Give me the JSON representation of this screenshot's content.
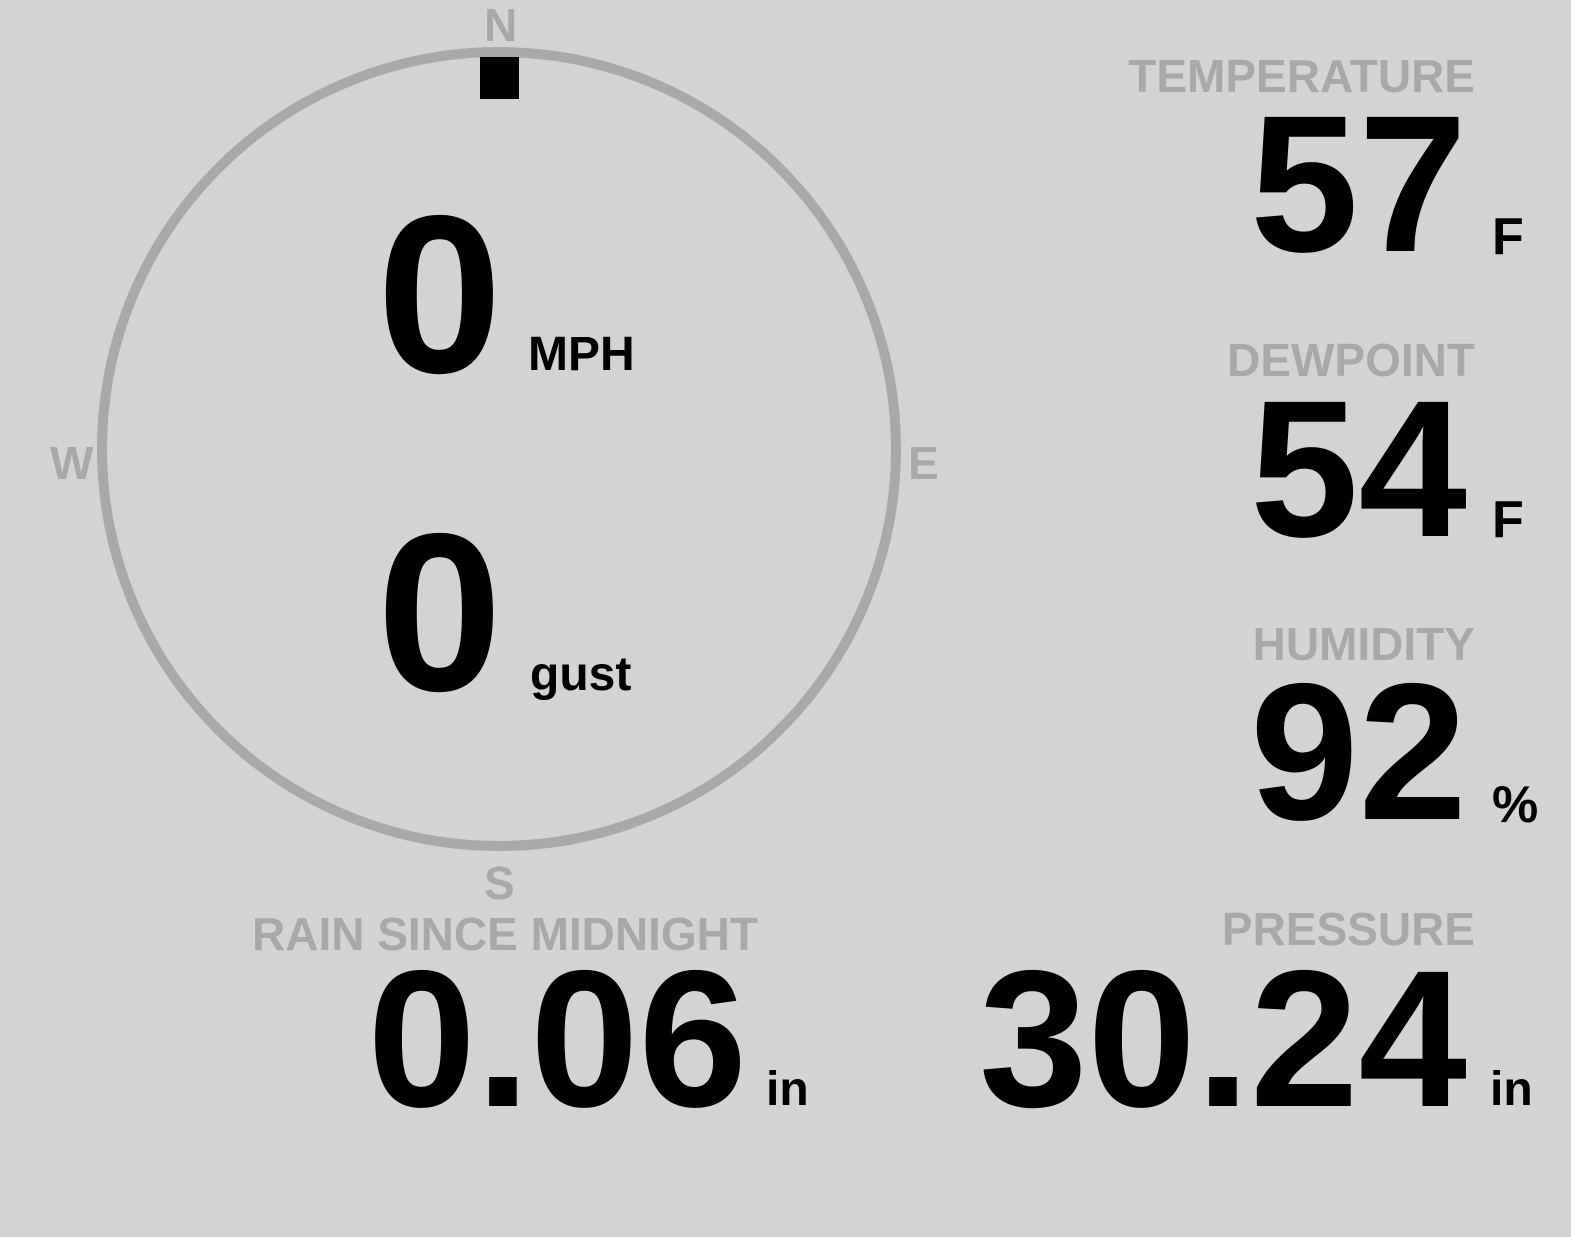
{
  "colors": {
    "background": "#d3d3d3",
    "label": "#a9a9a9",
    "value": "#000000"
  },
  "wind": {
    "compass": {
      "n": "N",
      "e": "E",
      "s": "S",
      "w": "W"
    },
    "direction_deg": 0,
    "speed": "0",
    "speed_unit": "MPH",
    "gust": "0",
    "gust_unit": "gust"
  },
  "temperature": {
    "label": "TEMPERATURE",
    "value": "57",
    "unit": "F"
  },
  "dewpoint": {
    "label": "DEWPOINT",
    "value": "54",
    "unit": "F"
  },
  "humidity": {
    "label": "HUMIDITY",
    "value": "92",
    "unit": "%"
  },
  "rain": {
    "label": "RAIN SINCE MIDNIGHT",
    "value": "0.06",
    "unit": "in"
  },
  "pressure": {
    "label": "PRESSURE",
    "value": "30.24",
    "unit": "in"
  }
}
